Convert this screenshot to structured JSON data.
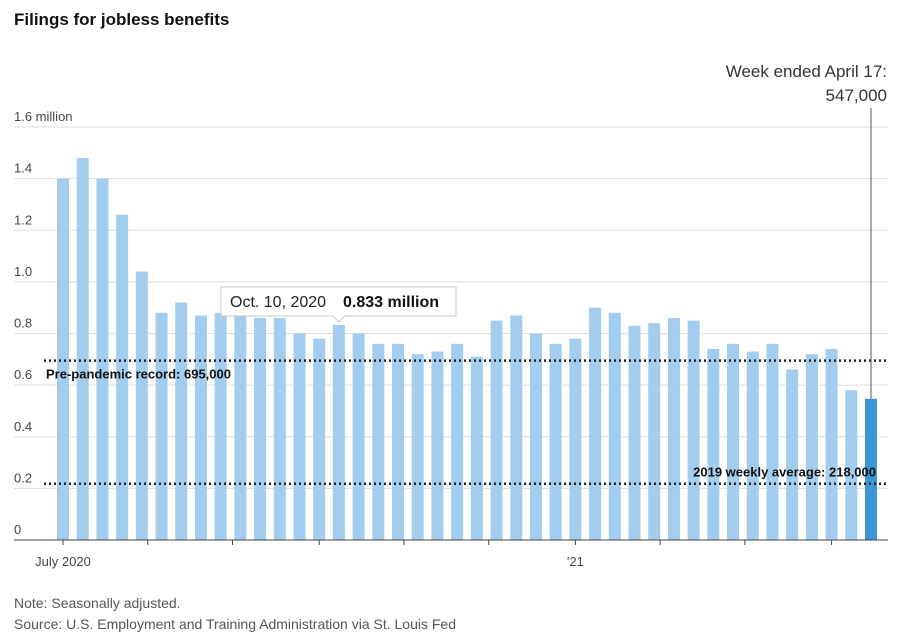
{
  "header": {
    "title": "Filings for jobless benefits"
  },
  "annotation_latest": {
    "line1": "Week ended April 17:",
    "line2": "547,000"
  },
  "tooltip": {
    "date": "Oct. 10, 2020",
    "value": "0.833 million"
  },
  "footer": {
    "note": "Note: Seasonally adjusted.",
    "source": "Source: U.S. Employment and Training Administration via St. Louis Fed"
  },
  "colors": {
    "bar": "#a3cdee",
    "bar_highlight": "#3d95d6",
    "grid": "#dddddd",
    "axis": "#444444",
    "reference": "#222222"
  },
  "chart_data": {
    "type": "bar",
    "title": "Filings for jobless benefits",
    "ylabel": "",
    "xlabel": "",
    "ylim": [
      0,
      1.6
    ],
    "yticks": [
      0,
      0.2,
      0.4,
      0.6,
      0.8,
      1.0,
      1.2,
      1.4,
      1.6
    ],
    "ytick_labels": [
      "0",
      "0.2",
      "0.4",
      "0.6",
      "0.8",
      "1.0",
      "1.2",
      "1.4",
      "1.6 million"
    ],
    "x_labels": [
      {
        "label": "July 2020",
        "at_index": 0
      },
      {
        "label": "'21",
        "at_index": 26
      }
    ],
    "values": [
      1.4,
      1.48,
      1.4,
      1.26,
      1.04,
      0.88,
      0.92,
      0.87,
      0.88,
      0.87,
      0.86,
      0.86,
      0.8,
      0.78,
      0.833,
      0.8,
      0.76,
      0.76,
      0.72,
      0.73,
      0.76,
      0.71,
      0.85,
      0.87,
      0.8,
      0.76,
      0.78,
      0.9,
      0.88,
      0.83,
      0.84,
      0.86,
      0.85,
      0.74,
      0.76,
      0.73,
      0.76,
      0.66,
      0.72,
      0.74,
      0.58,
      0.547
    ],
    "highlight_index": 41,
    "tooltip_index": 14,
    "reference_lines": [
      {
        "value": 0.695,
        "label": "Pre-pandemic record: 695,000"
      },
      {
        "value": 0.218,
        "label": "2019 weekly average: 218,000"
      }
    ],
    "grid": true,
    "legend": "none"
  }
}
